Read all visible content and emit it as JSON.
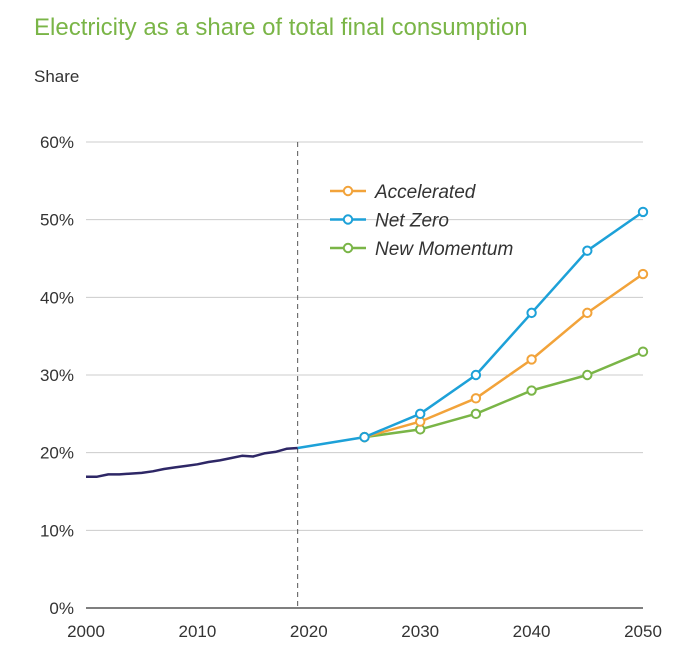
{
  "chart_data": {
    "type": "line",
    "title": "Electricity as a share of total final consumption",
    "ylabel": "Share",
    "xlabel": "",
    "xlim": [
      2000,
      2050
    ],
    "ylim": [
      0,
      60
    ],
    "x_ticks": [
      "2000",
      "2010",
      "2020",
      "2030",
      "2040",
      "2050"
    ],
    "y_ticks": [
      "0%",
      "10%",
      "20%",
      "30%",
      "40%",
      "50%",
      "60%"
    ],
    "grid": "horizontal",
    "legend_placement": "top-center",
    "reference_line_x": 2019,
    "historical": {
      "color": "#2e2766",
      "x": [
        2000,
        2001,
        2002,
        2003,
        2004,
        2005,
        2006,
        2007,
        2008,
        2009,
        2010,
        2011,
        2012,
        2013,
        2014,
        2015,
        2016,
        2017,
        2018,
        2019
      ],
      "values": [
        16.9,
        16.9,
        17.2,
        17.2,
        17.3,
        17.4,
        17.6,
        17.9,
        18.1,
        18.3,
        18.5,
        18.8,
        19.0,
        19.3,
        19.6,
        19.5,
        19.9,
        20.1,
        20.5,
        20.6
      ]
    },
    "bridge": {
      "color": "#1da1d8",
      "x": [
        2019,
        2025
      ],
      "values": [
        20.6,
        22
      ]
    },
    "series": [
      {
        "name": "Accelerated",
        "color": "#f2a33a",
        "x": [
          2025,
          2030,
          2035,
          2040,
          2045,
          2050
        ],
        "values": [
          22,
          24,
          27,
          32,
          38,
          43
        ]
      },
      {
        "name": "Net Zero",
        "color": "#1da1d8",
        "x": [
          2025,
          2030,
          2035,
          2040,
          2045,
          2050
        ],
        "values": [
          22,
          25,
          30,
          38,
          46,
          51
        ]
      },
      {
        "name": "New Momentum",
        "color": "#7ab547",
        "x": [
          2025,
          2030,
          2035,
          2040,
          2045,
          2050
        ],
        "values": [
          22,
          23,
          25,
          28,
          30,
          33
        ]
      }
    ]
  }
}
